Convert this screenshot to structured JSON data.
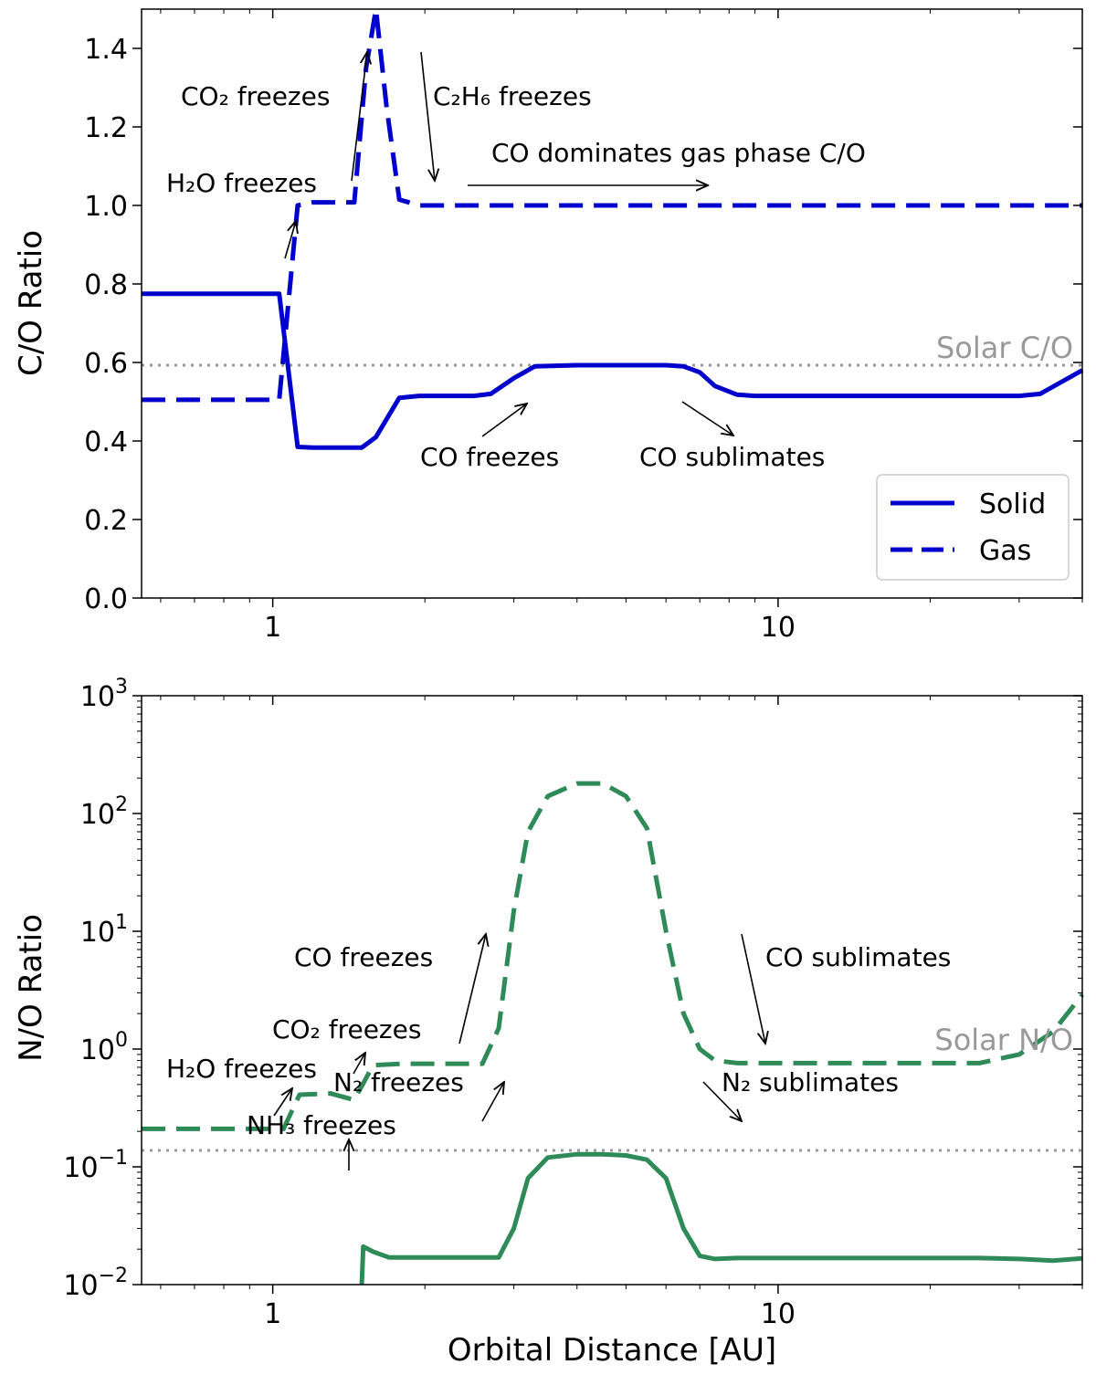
{
  "colors": {
    "blue": "#0000cc",
    "green": "#2e8b57",
    "solar": "#999999"
  },
  "chart_data": [
    {
      "type": "line",
      "xlabel": "",
      "ylabel": "C/O Ratio",
      "xscale": "log",
      "yscale": "linear",
      "xlim": [
        0.55,
        40
      ],
      "ylim": [
        0,
        1.5
      ],
      "xticks": [
        {
          "v": 1,
          "label": "1"
        },
        {
          "v": 10,
          "label": "10"
        }
      ],
      "yticks": [
        {
          "v": 0,
          "label": "0.0"
        },
        {
          "v": 0.2,
          "label": "0.2"
        },
        {
          "v": 0.4,
          "label": "0.4"
        },
        {
          "v": 0.6,
          "label": "0.6"
        },
        {
          "v": 0.8,
          "label": "0.8"
        },
        {
          "v": 1.0,
          "label": "1.0"
        },
        {
          "v": 1.2,
          "label": "1.2"
        },
        {
          "v": 1.4,
          "label": "1.4"
        }
      ],
      "reference_line": {
        "value": 0.593,
        "label": "Solar C/O"
      },
      "legend": {
        "position": "lower-right",
        "entries": [
          {
            "label": "Solid",
            "style": "solid"
          },
          {
            "label": "Gas",
            "style": "dashed"
          }
        ]
      },
      "series": [
        {
          "name": "Solid",
          "style": "solid",
          "color": "#0000cc",
          "x": [
            0.55,
            0.7,
            0.9,
            1.03,
            1.12,
            1.2,
            1.3,
            1.5,
            1.6,
            1.78,
            1.95,
            2.2,
            2.5,
            2.7,
            3.0,
            3.3,
            4.0,
            5.0,
            6.0,
            6.5,
            7.0,
            7.5,
            8.3,
            9.0,
            10,
            15,
            20,
            25,
            30,
            33,
            40
          ],
          "y": [
            0.775,
            0.775,
            0.775,
            0.775,
            0.385,
            0.383,
            0.383,
            0.383,
            0.41,
            0.51,
            0.515,
            0.515,
            0.515,
            0.52,
            0.56,
            0.59,
            0.593,
            0.593,
            0.593,
            0.59,
            0.575,
            0.54,
            0.518,
            0.515,
            0.515,
            0.515,
            0.515,
            0.515,
            0.515,
            0.52,
            0.58
          ]
        },
        {
          "name": "Gas",
          "style": "dashed",
          "color": "#0000cc",
          "x": [
            0.55,
            0.8,
            1.03,
            1.12,
            1.2,
            1.3,
            1.45,
            1.53,
            1.6,
            1.68,
            1.78,
            1.95,
            2.5,
            5,
            10,
            20,
            40
          ],
          "y": [
            0.505,
            0.505,
            0.505,
            1.0,
            1.008,
            1.008,
            1.008,
            1.35,
            1.5,
            1.25,
            1.015,
            1.0,
            1.0,
            1.0,
            1.0,
            1.0,
            1.0
          ]
        }
      ],
      "annotations": [
        {
          "text": "H₂O freezes"
        },
        {
          "text": "CO₂ freezes"
        },
        {
          "text": "C₂H₆ freezes"
        },
        {
          "text": "CO dominates gas phase C/O"
        },
        {
          "text": "CO freezes"
        },
        {
          "text": "CO sublimates"
        }
      ]
    },
    {
      "type": "line",
      "xlabel": "Orbital Distance [AU]",
      "ylabel": "N/O Ratio",
      "xscale": "log",
      "yscale": "log",
      "xlim": [
        0.55,
        40
      ],
      "ylim": [
        0.01,
        1000
      ],
      "xticks": [
        {
          "v": 1,
          "label": "1"
        },
        {
          "v": 10,
          "label": "10"
        }
      ],
      "yticks": [
        {
          "v": 0.01,
          "exp": "−2"
        },
        {
          "v": 0.1,
          "exp": "−1"
        },
        {
          "v": 1,
          "exp": "0"
        },
        {
          "v": 10,
          "exp": "1"
        },
        {
          "v": 100,
          "exp": "2"
        },
        {
          "v": 1000,
          "exp": "3"
        }
      ],
      "tick_base": "10",
      "reference_line": {
        "value": 0.138,
        "label": "Solar N/O"
      },
      "series": [
        {
          "name": "Gas",
          "style": "dashed",
          "color": "#2e8b57",
          "x": [
            0.55,
            0.8,
            1.05,
            1.13,
            1.3,
            1.45,
            1.58,
            1.8,
            2.2,
            2.6,
            2.8,
            3.0,
            3.2,
            3.5,
            4.0,
            4.5,
            5.0,
            5.5,
            6.0,
            6.5,
            7.0,
            7.5,
            8.3,
            10,
            15,
            20,
            25,
            30,
            35,
            40
          ],
          "y": [
            0.21,
            0.21,
            0.21,
            0.41,
            0.42,
            0.37,
            0.73,
            0.75,
            0.75,
            0.75,
            1.5,
            15,
            70,
            140,
            180,
            180,
            140,
            75,
            10,
            2,
            1.0,
            0.8,
            0.76,
            0.76,
            0.76,
            0.76,
            0.76,
            0.9,
            1.4,
            2.9
          ]
        },
        {
          "name": "Solid",
          "style": "solid",
          "color": "#2e8b57",
          "x": [
            1.5,
            1.51,
            1.58,
            1.7,
            2.0,
            2.5,
            2.8,
            3.0,
            3.2,
            3.5,
            4.0,
            4.5,
            5.0,
            5.5,
            6.0,
            6.5,
            7.0,
            7.5,
            8.3,
            10,
            15,
            20,
            25,
            30,
            35,
            40
          ],
          "y": [
            0.0095,
            0.021,
            0.019,
            0.017,
            0.017,
            0.017,
            0.017,
            0.03,
            0.08,
            0.12,
            0.128,
            0.128,
            0.125,
            0.115,
            0.08,
            0.03,
            0.0175,
            0.0165,
            0.0168,
            0.0168,
            0.0168,
            0.0168,
            0.0168,
            0.0165,
            0.016,
            0.0167
          ]
        }
      ],
      "annotations": [
        {
          "text": "H₂O freezes"
        },
        {
          "text": "CO₂ freezes"
        },
        {
          "text": "CO freezes"
        },
        {
          "text": "CO sublimates"
        },
        {
          "text": "N₂ freezes"
        },
        {
          "text": "NH₃ freezes"
        },
        {
          "text": "N₂ sublimates"
        }
      ]
    }
  ]
}
